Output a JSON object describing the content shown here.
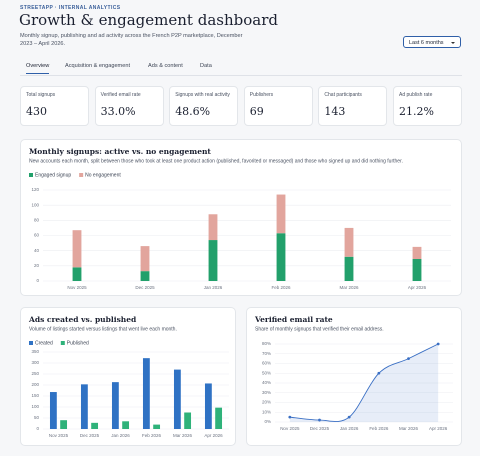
{
  "header": {
    "eyebrow": "STREETAPP · INTERNAL ANALYTICS",
    "title": "Growth & engagement dashboard",
    "subtitle": "Monthly signup, publishing and ad activity across the French P2P marketplace, December 2023 – April 2026.",
    "range_select": "Last 6 months"
  },
  "tabs": [
    "Overview",
    "Acquisition & engagement",
    "Ads & content",
    "Data"
  ],
  "kpis": [
    {
      "label": "Total signups",
      "value": "430"
    },
    {
      "label": "Verified email rate",
      "value": "33.0%"
    },
    {
      "label": "Signups with real activity",
      "value": "48.6%"
    },
    {
      "label": "Publishers",
      "value": "69"
    },
    {
      "label": "Chat participants",
      "value": "143"
    },
    {
      "label": "Ad publish rate",
      "value": "21.2%"
    }
  ],
  "chart_data": [
    {
      "type": "bar",
      "stacked": true,
      "grid": true,
      "title": "Monthly signups: active vs. no engagement",
      "subtitle": "New accounts each month, split between those who took at least one product action (published, favorited or messaged) and those who signed up and did nothing further.",
      "categories": [
        "Nov 2025",
        "Dec 2025",
        "Jan 2026",
        "Feb 2026",
        "Mar 2026",
        "Apr 2026"
      ],
      "series": [
        {
          "name": "Engaged signup",
          "color": "#22a06b",
          "values": [
            18,
            13,
            54,
            63,
            32,
            29
          ]
        },
        {
          "name": "No engagement",
          "color": "#e2a59d",
          "values": [
            49,
            33,
            34,
            51,
            38,
            16
          ]
        }
      ],
      "ylim": [
        0,
        120
      ],
      "yticks": [
        0,
        20,
        40,
        60,
        80,
        100,
        120
      ]
    },
    {
      "type": "bar",
      "stacked": false,
      "grid": true,
      "title": "Ads created vs. published",
      "subtitle": "Volume of listings started versus listings that went live each month.",
      "categories": [
        "Nov 2025",
        "Dec 2025",
        "Jan 2026",
        "Feb 2026",
        "Mar 2026",
        "Apr 2026"
      ],
      "series": [
        {
          "name": "Created",
          "color": "#2f72c4",
          "values": [
            168,
            203,
            213,
            322,
            270,
            207
          ]
        },
        {
          "name": "Published",
          "color": "#2fb27a",
          "values": [
            40,
            28,
            35,
            20,
            75,
            97
          ]
        }
      ],
      "ylim": [
        0,
        350
      ],
      "yticks": [
        0,
        50,
        100,
        150,
        200,
        250,
        300,
        350
      ]
    },
    {
      "type": "line",
      "grid": true,
      "title": "Verified email rate",
      "subtitle": "Share of monthly signups that verified their email address.",
      "categories": [
        "Nov 2025",
        "Dec 2025",
        "Jan 2026",
        "Feb 2026",
        "Mar 2026",
        "Apr 2026"
      ],
      "series": [
        {
          "color": "#3a6fc4",
          "values": [
            5,
            2,
            5,
            50,
            65,
            80
          ]
        }
      ],
      "ylim": [
        0,
        80
      ],
      "yticks": [
        {
          "value": 0,
          "label": "0%"
        },
        {
          "value": 10,
          "label": "10%"
        },
        {
          "value": 20,
          "label": "20%"
        },
        {
          "value": 30,
          "label": "30%"
        },
        {
          "value": 40,
          "label": "40%"
        },
        {
          "value": 50,
          "label": "50%"
        },
        {
          "value": 60,
          "label": "60%"
        },
        {
          "value": 70,
          "label": "70%"
        },
        {
          "value": 80,
          "label": "80%"
        }
      ]
    }
  ]
}
